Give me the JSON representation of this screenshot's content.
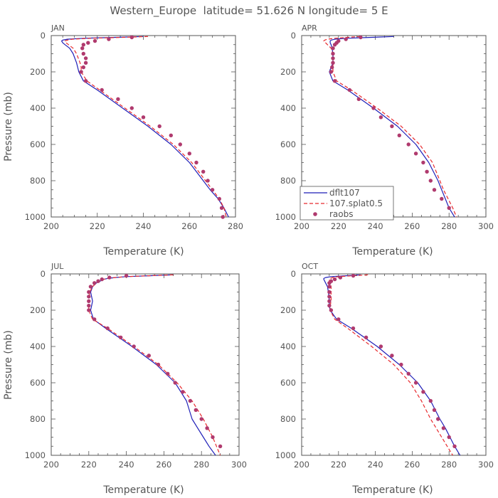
{
  "title": "Western_Europe  latitude= 51.626 N longitude= 5 E",
  "colors": {
    "dflt": "#1f1fb8",
    "splat": "#e8292d",
    "raobs": "#b03a6e",
    "axis": "#555555"
  },
  "legend": {
    "dflt": "dflt107",
    "splat": "107.splat0.5",
    "raobs": "raobs"
  },
  "chart_data": [
    {
      "type": "line",
      "panel": "JAN",
      "xlabel": "Temperature (K)",
      "ylabel": "Pressure (mb)",
      "xlim": [
        200,
        280
      ],
      "ylim": [
        1000,
        0
      ],
      "xticks": [
        200,
        220,
        240,
        260,
        280
      ],
      "yticks": [
        0,
        200,
        400,
        600,
        800,
        1000
      ],
      "series": [
        {
          "name": "dflt107",
          "style": "solid",
          "p": [
            5,
            10,
            15,
            20,
            25,
            30,
            40,
            50,
            70,
            100,
            150,
            175,
            200,
            250,
            300,
            400,
            500,
            600,
            700,
            800,
            850,
            900,
            950,
            1000
          ],
          "t": [
            240,
            228,
            214,
            207,
            205,
            204.5,
            205,
            206,
            208,
            209.5,
            211,
            211.5,
            212,
            214,
            220,
            231,
            242,
            252,
            260,
            266,
            269,
            272.5,
            275,
            277
          ]
        },
        {
          "name": "107.splat0.5",
          "style": "dashed",
          "p": [
            5,
            10,
            15,
            20,
            25,
            30,
            40,
            50,
            70,
            100,
            150,
            175,
            200,
            250,
            300,
            400,
            500,
            600,
            700,
            800,
            850,
            900,
            950,
            1000
          ],
          "t": [
            242,
            231,
            217,
            209,
            207,
            206,
            206.5,
            207.5,
            209.5,
            211,
            212.5,
            213,
            213,
            215.5,
            221,
            232,
            243,
            253,
            261,
            267,
            270,
            273,
            275,
            276
          ]
        },
        {
          "name": "raobs",
          "style": "dots",
          "p": [
            10,
            20,
            30,
            40,
            50,
            70,
            100,
            125,
            150,
            175,
            200,
            250,
            300,
            350,
            400,
            450,
            500,
            550,
            600,
            650,
            700,
            750,
            800,
            850,
            900,
            950,
            1000
          ],
          "t": [
            235,
            225,
            219,
            216,
            214,
            213.5,
            214,
            215,
            215,
            214,
            213,
            215,
            222,
            229,
            235,
            240,
            247,
            252,
            256,
            260,
            263,
            266,
            268,
            270,
            273,
            274,
            274.5
          ]
        }
      ]
    },
    {
      "type": "line",
      "panel": "APR",
      "xlabel": "Temperature (K)",
      "ylabel": "Pressure (mb)",
      "xlim": [
        200,
        300
      ],
      "ylim": [
        1000,
        0
      ],
      "xticks": [
        200,
        220,
        240,
        260,
        280,
        300
      ],
      "yticks": [
        0,
        200,
        400,
        600,
        800,
        1000
      ],
      "series": [
        {
          "name": "dflt107",
          "style": "solid",
          "p": [
            5,
            10,
            15,
            20,
            25,
            30,
            40,
            50,
            70,
            100,
            150,
            175,
            200,
            250,
            300,
            400,
            500,
            600,
            700,
            800,
            850,
            900,
            950,
            1000
          ],
          "t": [
            250,
            238,
            224,
            218,
            216,
            215.5,
            215.5,
            216,
            216.5,
            217,
            217,
            216,
            215,
            217,
            225,
            239,
            252,
            262,
            269,
            274,
            276,
            278,
            280,
            283
          ]
        },
        {
          "name": "107.splat0.5",
          "style": "dashed",
          "p": [
            5,
            10,
            15,
            20,
            25,
            30,
            40,
            50,
            70,
            100,
            150,
            175,
            200,
            250,
            300,
            400,
            500,
            600,
            700,
            800,
            850,
            900,
            950,
            1000
          ],
          "t": [
            232,
            225,
            218,
            214,
            212.5,
            212,
            213,
            214,
            216,
            217,
            217,
            217,
            217,
            219,
            227,
            241,
            254,
            264,
            271,
            275,
            277,
            279.5,
            282,
            284
          ]
        },
        {
          "name": "raobs",
          "style": "dots",
          "p": [
            10,
            20,
            30,
            40,
            50,
            70,
            100,
            125,
            150,
            175,
            200,
            250,
            300,
            350,
            400,
            450,
            500,
            550,
            600,
            650,
            700,
            750,
            800,
            850,
            900,
            950
          ],
          "t": [
            232,
            224,
            220,
            219,
            218,
            217,
            217,
            217,
            217,
            216.5,
            216,
            218,
            226,
            231,
            239,
            243,
            249,
            253,
            258,
            262,
            266,
            268,
            270,
            272,
            276,
            280
          ]
        }
      ]
    },
    {
      "type": "line",
      "panel": "JUL",
      "xlabel": "Temperature (K)",
      "ylabel": "Pressure (mb)",
      "xlim": [
        200,
        300
      ],
      "ylim": [
        1000,
        0
      ],
      "xticks": [
        200,
        220,
        240,
        260,
        280,
        300
      ],
      "yticks": [
        0,
        200,
        400,
        600,
        800,
        1000
      ],
      "series": [
        {
          "name": "dflt107",
          "style": "solid",
          "p": [
            5,
            10,
            15,
            20,
            25,
            30,
            40,
            50,
            70,
            100,
            150,
            175,
            200,
            250,
            300,
            400,
            500,
            600,
            700,
            800,
            850,
            900,
            950,
            1000
          ],
          "t": [
            265,
            252,
            240,
            234,
            230,
            228,
            226,
            224,
            222,
            221,
            222,
            221.5,
            221,
            222.5,
            229,
            243,
            256,
            266,
            272,
            275,
            278,
            281,
            284,
            287.5
          ]
        },
        {
          "name": "107.splat0.5",
          "style": "dashed",
          "p": [
            5,
            10,
            15,
            20,
            25,
            30,
            40,
            50,
            70,
            100,
            150,
            175,
            200,
            250,
            300,
            400,
            500,
            600,
            700,
            800,
            850,
            900,
            950,
            1000
          ],
          "t": [
            265,
            252,
            240,
            234,
            230,
            228,
            226,
            224,
            222,
            220.5,
            220,
            220,
            220,
            222,
            230,
            244,
            257,
            267,
            275,
            281,
            283.5,
            286,
            288,
            290
          ]
        },
        {
          "name": "raobs",
          "style": "dots",
          "p": [
            10,
            20,
            30,
            40,
            50,
            70,
            100,
            125,
            150,
            175,
            200,
            250,
            300,
            350,
            400,
            450,
            500,
            550,
            600,
            650,
            700,
            750,
            800,
            850,
            900,
            950
          ],
          "t": [
            240,
            231,
            227,
            225,
            223,
            221,
            220,
            220,
            220,
            220,
            220,
            223,
            230,
            237,
            244,
            252,
            257,
            262,
            266,
            270,
            274,
            277,
            280,
            283,
            286,
            290
          ]
        }
      ]
    },
    {
      "type": "line",
      "panel": "OCT",
      "xlabel": "Temperature (K)",
      "ylabel": "Pressure (mb)",
      "xlim": [
        200,
        300
      ],
      "ylim": [
        1000,
        0
      ],
      "xticks": [
        200,
        220,
        240,
        260,
        280,
        300
      ],
      "yticks": [
        0,
        200,
        400,
        600,
        800,
        1000
      ],
      "series": [
        {
          "name": "dflt107",
          "style": "solid",
          "p": [
            5,
            10,
            15,
            20,
            25,
            30,
            40,
            50,
            70,
            100,
            150,
            175,
            200,
            250,
            300,
            400,
            500,
            600,
            700,
            800,
            850,
            900,
            950,
            1000
          ],
          "t": [
            232,
            224,
            216,
            213,
            212,
            212,
            212.5,
            213,
            214,
            214.5,
            215,
            215,
            215.5,
            219,
            227,
            241,
            253,
            263,
            270,
            275,
            278,
            280.5,
            283,
            286
          ]
        },
        {
          "name": "107.splat0.5",
          "style": "dashed",
          "p": [
            5,
            10,
            15,
            20,
            25,
            30,
            40,
            50,
            70,
            100,
            150,
            175,
            200,
            250,
            300,
            400,
            500,
            600,
            700,
            800,
            850,
            900,
            950,
            1000
          ],
          "t": [
            236,
            228,
            220,
            217,
            215.5,
            215,
            215,
            215.5,
            216,
            216,
            216,
            215.5,
            215.5,
            218,
            225,
            238,
            250,
            259,
            265,
            270,
            273,
            276,
            279,
            282
          ]
        },
        {
          "name": "raobs",
          "style": "dots",
          "p": [
            10,
            20,
            30,
            40,
            50,
            70,
            100,
            125,
            150,
            175,
            200,
            250,
            300,
            350,
            400,
            450,
            500,
            550,
            600,
            650,
            700,
            750,
            800,
            850,
            900,
            950
          ],
          "t": [
            228,
            221,
            218,
            216,
            215,
            215,
            215,
            215,
            215,
            215,
            216,
            220,
            228,
            235,
            243,
            249,
            254,
            258,
            262,
            266,
            270,
            272,
            274,
            277,
            280,
            283
          ]
        }
      ]
    }
  ]
}
